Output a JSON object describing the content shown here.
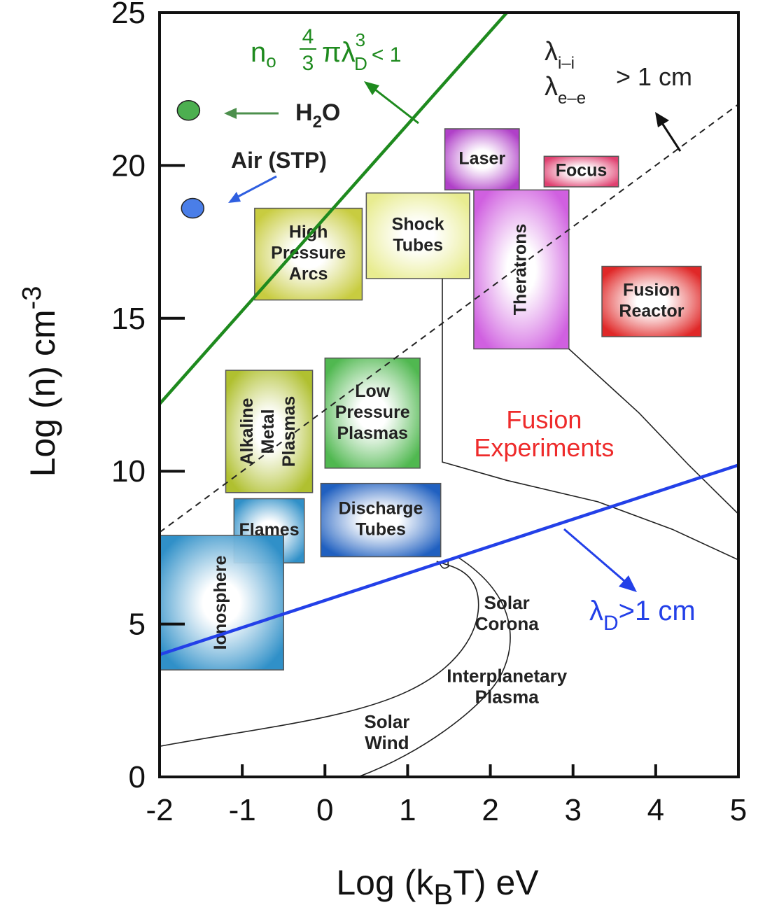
{
  "chart_data": {
    "type": "scatter",
    "xlabel": "Log (k",
    "xlabel_sub": "B",
    "xlabel_tail": "T) eV",
    "ylabel": "Log (n) cm",
    "ylabel_sup": "-3",
    "xlim": [
      -2,
      5
    ],
    "ylim": [
      0,
      25
    ],
    "xticks": [
      "-2",
      "-1",
      "0",
      "1",
      "2",
      "3",
      "4",
      "5"
    ],
    "yticks": [
      "0",
      "5",
      "10",
      "15",
      "20",
      "25"
    ],
    "grid": false,
    "points": [
      {
        "name": "H",
        "sub": "2",
        "tail": "O",
        "x": -1.65,
        "y": 21.8,
        "color": "#4caf50"
      },
      {
        "name": "Air (STP)",
        "x": -1.6,
        "y": 18.6,
        "color": "#4a7ee8"
      }
    ],
    "lines": [
      {
        "kind": "debye-sphere",
        "x": [
          -2,
          2.2
        ],
        "y": [
          12.2,
          25
        ],
        "color": "#1e8a1e",
        "label_lead": "n",
        "label_lead_sub": "o",
        "label_frac_num": "4",
        "label_frac_den": "3",
        "label_pi_lambda": "πλ",
        "label_sup": "3",
        "label_sub": "D",
        "label_tail": "< 1"
      },
      {
        "kind": "debye-length",
        "x": [
          -2,
          5
        ],
        "y": [
          4,
          10.2
        ],
        "color": "#2340e8",
        "label_lambda": "λ",
        "label_sub": "D",
        "label_tail": ">1 cm"
      },
      {
        "kind": "mean-free-path",
        "x": [
          -2,
          5
        ],
        "y": [
          8,
          22
        ],
        "color": "#222222",
        "dashed": true,
        "label_l1": "λ",
        "label_l1_sub": "i–i",
        "label_l2": "λ",
        "label_l2_sub": "e–e",
        "label_tail": "> 1 cm"
      }
    ],
    "regions": [
      {
        "label": [
          "Laser"
        ],
        "x": [
          1.45,
          2.35
        ],
        "y": [
          19.2,
          21.2
        ],
        "color": "#b040c8",
        "vertical": false
      },
      {
        "label": [
          "Focus"
        ],
        "x": [
          2.65,
          3.55
        ],
        "y": [
          19.3,
          20.3
        ],
        "color": "#e04070",
        "vertical": false
      },
      {
        "label": [
          "Shock",
          "Tubes"
        ],
        "x": [
          0.5,
          1.75
        ],
        "y": [
          16.3,
          19.1
        ],
        "color": "#e8ec90",
        "vertical": false
      },
      {
        "label": [
          "High",
          "Pressure",
          "Arcs"
        ],
        "x": [
          -0.85,
          0.45
        ],
        "y": [
          15.6,
          18.6
        ],
        "color": "#c8cc40",
        "vertical": false
      },
      {
        "label": [
          "Theratrons"
        ],
        "x": [
          1.8,
          2.95
        ],
        "y": [
          14,
          19.2
        ],
        "color": "#d060e0",
        "vertical": true
      },
      {
        "label": [
          "Fusion",
          "Reactor"
        ],
        "x": [
          3.35,
          4.55
        ],
        "y": [
          14.4,
          16.7
        ],
        "color": "#e02828",
        "vertical": false
      },
      {
        "label": [
          "Low",
          "Pressure",
          "Plasmas"
        ],
        "x": [
          0,
          1.15
        ],
        "y": [
          10.1,
          13.7
        ],
        "color": "#50b850",
        "vertical": false
      },
      {
        "label": [
          "Alkaline",
          "Metal",
          "Plasmas"
        ],
        "x": [
          -1.2,
          -0.15
        ],
        "y": [
          9.3,
          13.3
        ],
        "color": "#b0c030",
        "vertical": true
      },
      {
        "label": [
          "Flames"
        ],
        "x": [
          -1.1,
          -0.25
        ],
        "y": [
          7,
          9.1
        ],
        "color": "#3090c8",
        "vertical": false
      },
      {
        "label": [
          "Discharge",
          "Tubes"
        ],
        "x": [
          -0.05,
          1.4
        ],
        "y": [
          7.2,
          9.6
        ],
        "color": "#2060c0",
        "vertical": false
      },
      {
        "label": [
          "Ionosphere"
        ],
        "x": [
          -2,
          -0.5
        ],
        "y": [
          3.5,
          7.9
        ],
        "color": "#3090c8",
        "vertical": true
      }
    ],
    "annotations": [
      {
        "text": [
          "Fusion",
          "Experiments"
        ],
        "x": 2.65,
        "y": 11.4,
        "color": "#ee2b2b"
      },
      {
        "text": [
          "Solar",
          "Corona"
        ],
        "x": 2.2,
        "y": 5.5,
        "color": "#222222"
      },
      {
        "text": [
          "Interplanetary",
          "Plasma"
        ],
        "x": 2.2,
        "y": 3.1,
        "color": "#222222"
      },
      {
        "text": [
          "Solar",
          "Wind"
        ],
        "x": 0.75,
        "y": 1.6,
        "color": "#222222"
      }
    ]
  }
}
